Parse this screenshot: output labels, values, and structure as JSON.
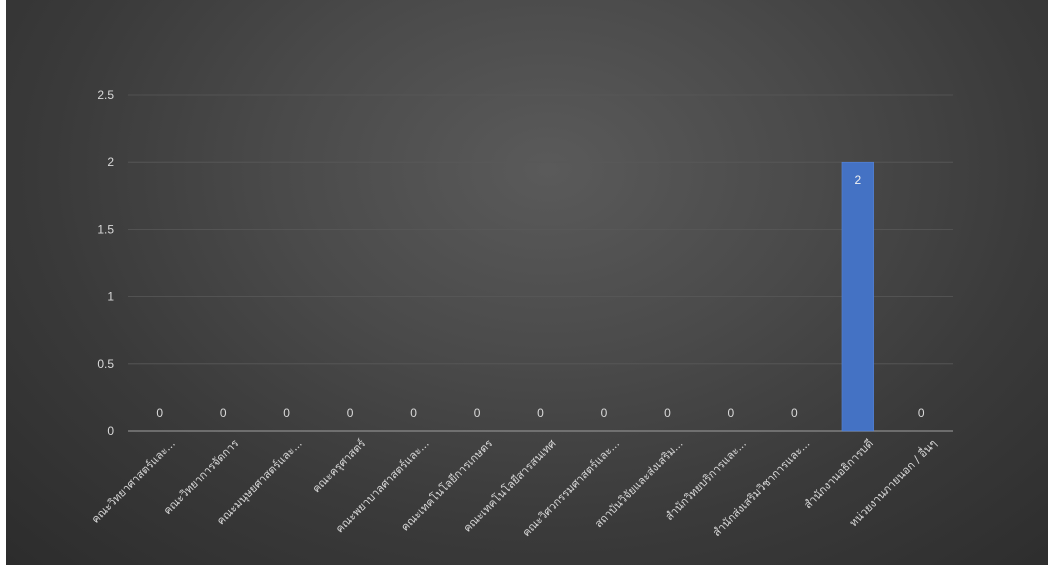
{
  "chart_data": {
    "type": "bar",
    "categories": [
      "คณะวิทยาศาสตร์และ...",
      "คณะวิทยาการจัดการ",
      "คณะมนุษยศาสตร์และ...",
      "คณะครุศาสตร์",
      "คณะพยาบาลศาสตร์และ...",
      "คณะเทคโนโลยีการเกษตร",
      "คณะเทคโนโลยีสารสนเทศ",
      "คณะวิศวกรรมศาสตร์และ...",
      "สถาบันวิจัยและส่งเสริม...",
      "สำนักวิทยบริการและ...",
      "สำนักส่งเสริมวิชาการและ...",
      "สำนักงานอธิการบดี",
      "หน่วยงานภายนอก / อื่นๆ"
    ],
    "values": [
      0,
      0,
      0,
      0,
      0,
      0,
      0,
      0,
      0,
      0,
      0,
      2,
      0
    ],
    "value_labels": [
      "0",
      "0",
      "0",
      "0",
      "0",
      "0",
      "0",
      "0",
      "0",
      "0",
      "0",
      "2",
      "0"
    ],
    "ylim": [
      0,
      2.5
    ],
    "yticks": [
      "0",
      "0.5",
      "1",
      "1.5",
      "2",
      "2.5"
    ],
    "ytick_values": [
      0,
      0.5,
      1,
      1.5,
      2,
      2.5
    ],
    "grid": true,
    "bar_color": "#4472c4",
    "background_color": "#404040",
    "grid_color": "#595959",
    "text_color": "#d9d9d9"
  }
}
